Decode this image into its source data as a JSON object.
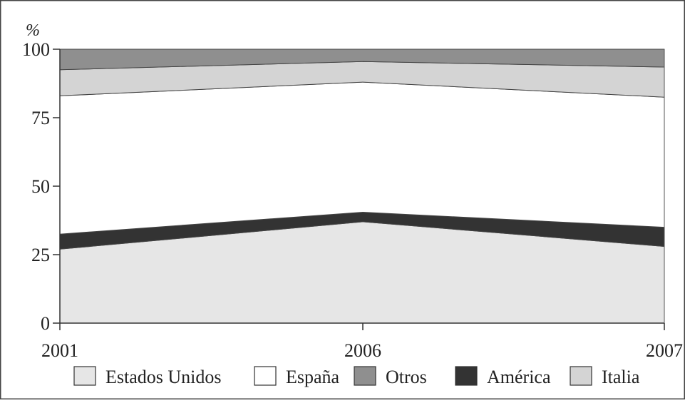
{
  "chart_data": {
    "type": "area",
    "stacked": true,
    "percent_stacked": true,
    "unit_label": "%",
    "x": [
      "2001",
      "2006",
      "2007"
    ],
    "ylim": [
      0,
      100
    ],
    "yticks": [
      "0",
      "25",
      "50",
      "75",
      "100"
    ],
    "grid": false,
    "legend_position": "bottom",
    "series": [
      {
        "name": "Estados Unidos",
        "color": "#e6e6e6",
        "values": [
          27,
          37,
          28
        ]
      },
      {
        "name": "América",
        "color": "#333333",
        "values": [
          5.5,
          3.5,
          7
        ]
      },
      {
        "name": "España",
        "color": "#ffffff",
        "values": [
          50.5,
          47.5,
          47.5
        ]
      },
      {
        "name": "Italia",
        "color": "#d4d4d4",
        "values": [
          9.5,
          7.5,
          11
        ]
      },
      {
        "name": "Otros",
        "color": "#8f8f8f",
        "values": [
          7.5,
          4.5,
          6.5
        ]
      }
    ],
    "legend": [
      {
        "name": "Estados Unidos",
        "color": "#e6e6e6"
      },
      {
        "name": "España",
        "color": "#ffffff"
      },
      {
        "name": "Otros",
        "color": "#8f8f8f"
      },
      {
        "name": "América",
        "color": "#333333"
      },
      {
        "name": "Italia",
        "color": "#d4d4d4"
      }
    ]
  }
}
